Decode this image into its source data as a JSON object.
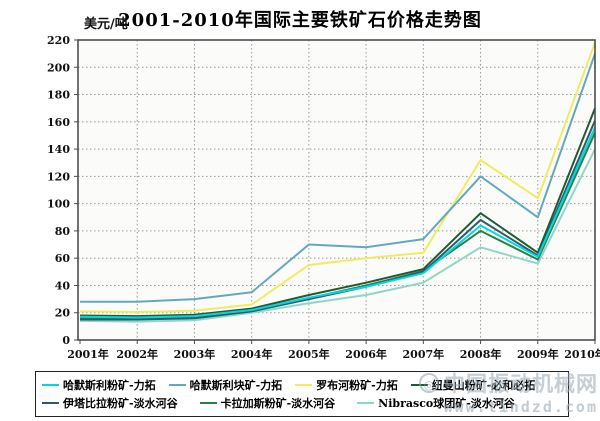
{
  "watermark": {
    "site_name": "中国振动机械网",
    "url": "www.tindzd.com",
    "logo_glyph": "◎"
  },
  "chart_data": {
    "type": "line",
    "title": "2001-2010年国际主要铁矿石价格走势图",
    "y_unit": "美元/吨",
    "x_labels": [
      "2001年",
      "2002年",
      "2003年",
      "2004年",
      "2005年",
      "2006年",
      "2007年",
      "2008年",
      "2009年",
      "2010年"
    ],
    "ylim": [
      0,
      220
    ],
    "y_tick_step": 20,
    "grid": "dotted",
    "legend_position": "bottom",
    "series": [
      {
        "name": "哈默斯利粉矿-力拓",
        "color": "#00d8e0",
        "values": [
          17,
          16.5,
          17.5,
          22,
          31,
          39,
          49,
          84,
          61,
          156
        ]
      },
      {
        "name": "哈默斯利块矿-力拓",
        "color": "#63a9bc",
        "values": [
          28,
          28,
          30,
          35,
          70,
          68,
          74,
          120,
          90,
          210
        ]
      },
      {
        "name": "罗布河粉矿-力拓",
        "color": "#efec60",
        "values": [
          21,
          20.5,
          21.5,
          26,
          55,
          60,
          64,
          132,
          104,
          218
        ]
      },
      {
        "name": "纽曼山粉矿-必和必拓",
        "color": "#1e5c34",
        "values": [
          18,
          17.5,
          18.5,
          23,
          33,
          42,
          52,
          93,
          64,
          170
        ]
      },
      {
        "name": "伊塔比拉粉矿-淡水河谷",
        "color": "#2f5a69",
        "values": [
          15,
          15,
          16,
          21,
          30,
          39,
          50,
          88,
          62,
          161
        ]
      },
      {
        "name": "卡拉加斯粉矿-淡水河谷",
        "color": "#2b7f49",
        "values": [
          16,
          15.5,
          16.5,
          21.5,
          30.5,
          40,
          50.5,
          80,
          59,
          152
        ]
      },
      {
        "name": "Nibrasco球团矿-淡水河谷",
        "color": "#8fd6c9",
        "values": [
          14,
          13.5,
          14.5,
          20,
          27,
          33,
          42,
          68,
          56,
          140
        ]
      }
    ],
    "legend_rows": [
      [
        0,
        1,
        2,
        3
      ],
      [
        4,
        5,
        6
      ]
    ]
  }
}
